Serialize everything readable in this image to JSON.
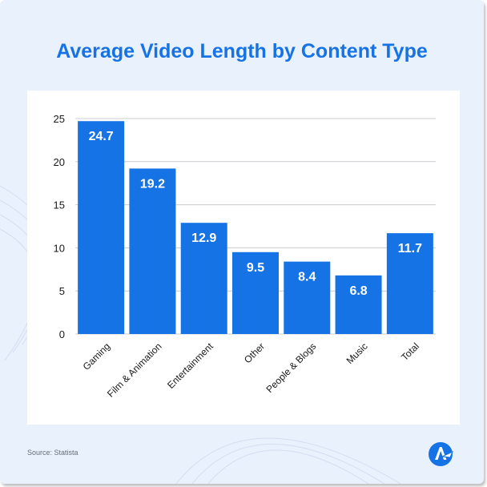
{
  "title": "Average Video Length by Content Type",
  "source": "Source: Statista",
  "colors": {
    "bar": "#1673e6",
    "title": "#1673e6",
    "background": "#e9f1fc",
    "grid": "#c9ccd1",
    "axis_text": "#1a1a1a"
  },
  "logo_icon": "brand-logo-icon",
  "chart_data": {
    "type": "bar",
    "title": "Average Video Length by Content Type",
    "xlabel": "",
    "ylabel": "",
    "categories": [
      "Gaming",
      "Film & Animation",
      "Entertainment",
      "Other",
      "People & Blogs",
      "Music",
      "Total"
    ],
    "values": [
      24.7,
      19.2,
      12.9,
      9.5,
      8.4,
      6.8,
      11.7
    ],
    "value_labels": [
      "24.7",
      "19.2",
      "12.9",
      "9.5",
      "8.4",
      "6.8",
      "11.7"
    ],
    "ylim": [
      0,
      25
    ],
    "yticks": [
      0,
      5,
      10,
      15,
      20,
      25
    ],
    "grid": true,
    "legend": "none"
  }
}
